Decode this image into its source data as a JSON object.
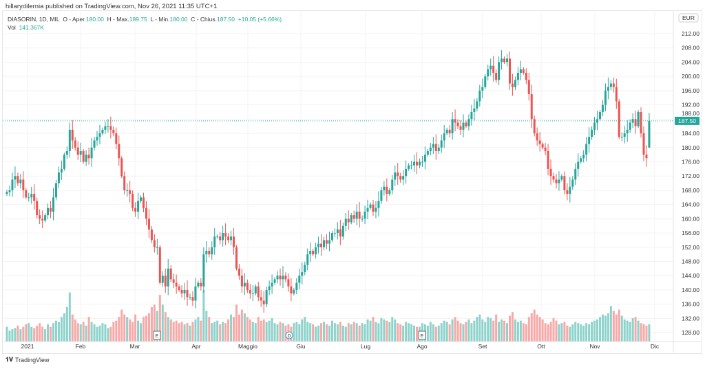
{
  "published": "hillarydilernia published on TradingView.com, Nov 26, 2021 11:35 UTC+1",
  "legend": {
    "symbol": "DIASORIN, 1D, MIL",
    "open_label": "O - Aper.",
    "open": "180.00",
    "high_label": "H - Max.",
    "high": "189.75",
    "low_label": "L - Min.",
    "low": "180.00",
    "close_label": "C - Chius.",
    "close": "187.50",
    "change": "+10.05 (+5.66%)",
    "vol_label": "Vol",
    "vol": "141.367K"
  },
  "currency": "EUR",
  "last_price_label": "187.50",
  "footer_brand": "TradingView",
  "colors": {
    "up": "#26a69a",
    "down": "#ef5350",
    "up_volume": "#8ed3cb",
    "down_volume": "#f7a9a7"
  },
  "events": [
    {
      "type": "E",
      "label": "E",
      "month": "Mar"
    },
    {
      "type": "D",
      "label": "D",
      "month": "Maggio"
    },
    {
      "type": "E",
      "label": "E",
      "month": "Ago"
    }
  ],
  "chart_data": {
    "type": "candlestick",
    "title": "DIASORIN, 1D, MIL",
    "y_ticks": [
      "212.00",
      "208.00",
      "204.00",
      "200.00",
      "196.00",
      "192.00",
      "188.00",
      "184.00",
      "180.00",
      "176.00",
      "172.00",
      "168.00",
      "164.00",
      "160.00",
      "156.00",
      "152.00",
      "148.00",
      "144.00",
      "140.00",
      "136.00",
      "132.00",
      "128.00"
    ],
    "ylim": [
      128,
      212
    ],
    "x_ticks": [
      "2021",
      "Feb",
      "Mar",
      "Apr",
      "Maggio",
      "Giu",
      "Lug",
      "Ago",
      "Set",
      "Ott",
      "Nov",
      "Dic"
    ],
    "grid": true,
    "closes": [
      167.5,
      168,
      171,
      172,
      170,
      171,
      168,
      166,
      166,
      167,
      165,
      161,
      160,
      159.5,
      161,
      163,
      162,
      166,
      170,
      173,
      174,
      178,
      179,
      185,
      182,
      180,
      178,
      179,
      176,
      178,
      177,
      180,
      182,
      183,
      184,
      185,
      186,
      186,
      185,
      184,
      181,
      177,
      172,
      168,
      168,
      167,
      163,
      162,
      165,
      166,
      163,
      160,
      157,
      154,
      152,
      152,
      142,
      144,
      141,
      146,
      143,
      142,
      141,
      140,
      139,
      140,
      138,
      138,
      137,
      141,
      142,
      141,
      150,
      151,
      150,
      152,
      155,
      155,
      154,
      156,
      155,
      154,
      155,
      152,
      146,
      144,
      141,
      142,
      140,
      139,
      139,
      141,
      138,
      137,
      136,
      140,
      141,
      142,
      143,
      144,
      143,
      144,
      143,
      141,
      139,
      140,
      142,
      144,
      145,
      147,
      150,
      151,
      150,
      152,
      153,
      152,
      154,
      153,
      154,
      156,
      156,
      157,
      155,
      158,
      160,
      159,
      161,
      160,
      162,
      160,
      160,
      162,
      163,
      164,
      162,
      163,
      165,
      168,
      169,
      167,
      168,
      171,
      173,
      172,
      171,
      172,
      174,
      175,
      175,
      176,
      175,
      176,
      176,
      178,
      179,
      180,
      181,
      179,
      180,
      182,
      184,
      185,
      184,
      188,
      187,
      186,
      185,
      187,
      186,
      188,
      190,
      191,
      193,
      196,
      197,
      200,
      202,
      203,
      201,
      199,
      204,
      205,
      204,
      205,
      198,
      197,
      199,
      201,
      202,
      201,
      199,
      195,
      188,
      184,
      182,
      181,
      180,
      179,
      174,
      172,
      171,
      170,
      171,
      172,
      168,
      167,
      169,
      171,
      174,
      176,
      177,
      178,
      181,
      183,
      185,
      187,
      188,
      190,
      192,
      196,
      197,
      198,
      197,
      193,
      183,
      183,
      184,
      185,
      187,
      188,
      186,
      190,
      184,
      178,
      177,
      187.5
    ],
    "last_candle": {
      "open": 180.0,
      "high": 189.75,
      "low": 180.0,
      "close": 187.5
    },
    "volume_k": [
      120,
      90,
      100,
      110,
      130,
      100,
      120,
      140,
      150,
      120,
      110,
      130,
      150,
      120,
      100,
      140,
      120,
      150,
      170,
      160,
      200,
      230,
      280,
      400,
      220,
      180,
      150,
      140,
      160,
      130,
      200,
      160,
      140,
      120,
      130,
      150,
      140,
      110,
      120,
      160,
      170,
      200,
      260,
      220,
      200,
      180,
      160,
      220,
      170,
      150,
      200,
      210,
      230,
      280,
      300,
      250,
      380,
      300,
      240,
      200,
      180,
      160,
      170,
      150,
      160,
      140,
      150,
      130,
      160,
      180,
      200,
      170,
      420,
      250,
      200,
      150,
      160,
      170,
      140,
      160,
      150,
      180,
      220,
      200,
      300,
      220,
      260,
      230,
      200,
      180,
      160,
      150,
      200,
      170,
      180,
      160,
      170,
      190,
      150,
      140,
      160,
      150,
      130,
      140,
      120,
      150,
      160,
      140,
      180,
      200,
      160,
      150,
      140,
      120,
      130,
      150,
      160,
      140,
      130,
      170,
      150,
      140,
      160,
      130,
      120,
      150,
      140,
      160,
      150,
      130,
      150,
      140,
      180,
      170,
      200,
      160,
      150,
      190,
      180,
      170,
      160,
      200,
      180,
      150,
      140,
      130,
      160,
      150,
      140,
      130,
      120,
      120,
      150,
      140,
      130,
      160,
      140,
      120,
      130,
      150,
      170,
      160,
      140,
      180,
      200,
      170,
      150,
      140,
      160,
      180,
      150,
      170,
      200,
      220,
      180,
      160,
      200,
      190,
      170,
      220,
      160,
      180,
      170,
      150,
      210,
      240,
      180,
      160,
      170,
      150,
      140,
      200,
      230,
      260,
      220,
      200,
      180,
      150,
      140,
      160,
      190,
      170,
      140,
      150,
      160,
      130,
      120,
      140,
      160,
      150,
      140,
      130,
      150,
      140,
      160,
      170,
      180,
      200,
      220,
      210,
      230,
      290,
      250,
      220,
      260,
      210,
      180,
      170,
      160,
      190,
      200,
      170,
      150,
      140,
      130,
      141.367
    ]
  }
}
